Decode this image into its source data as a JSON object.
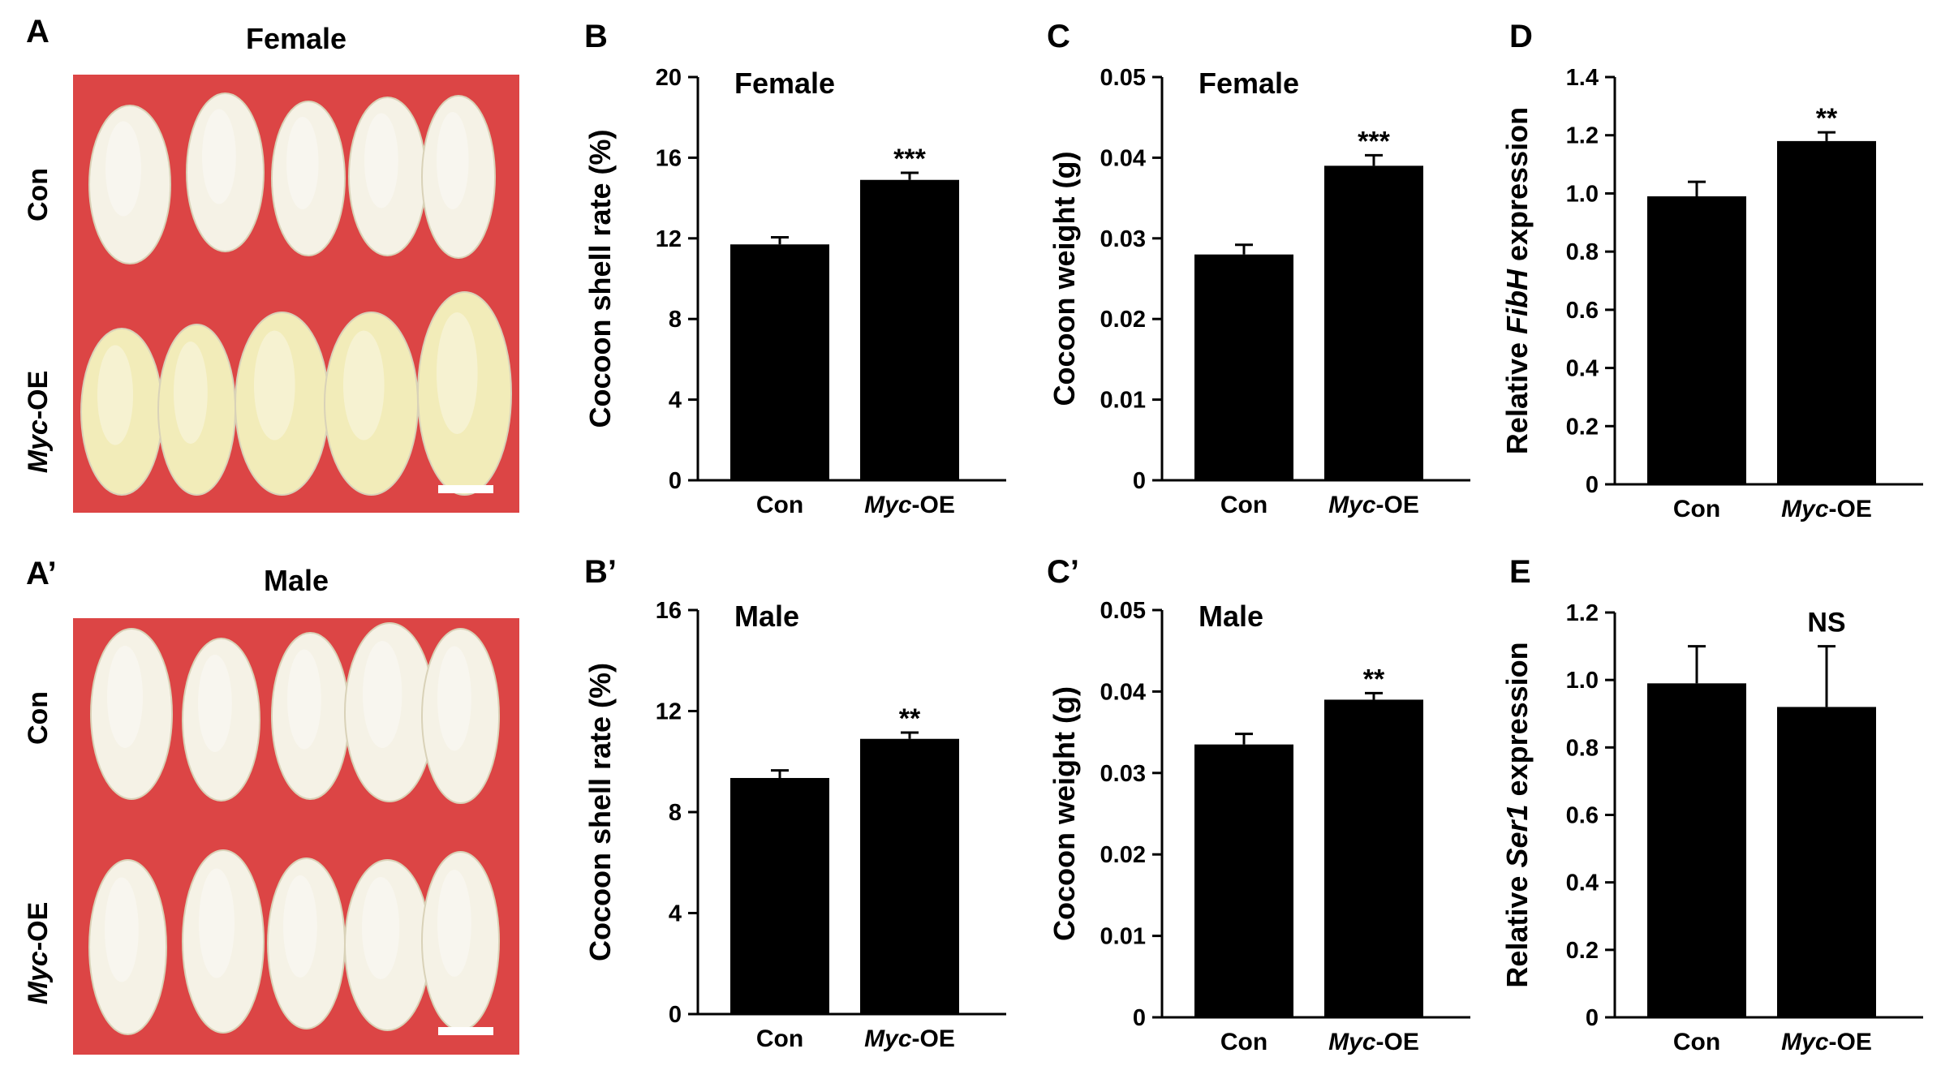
{
  "colors": {
    "bar": "#000000",
    "photo_bg": "#dc4545",
    "cocoon_white": "#f5f2e6",
    "cocoon_yellow": "#f2ecb9",
    "scale_bar": "#ffffff"
  },
  "photos": [
    {
      "panel": "A",
      "title": "Female",
      "rows": [
        {
          "label": "Con",
          "tone": "white",
          "count": 5
        },
        {
          "label_italic": "Myc",
          "label_rest": "-OE",
          "tone": "yellow",
          "count": 5
        }
      ]
    },
    {
      "panel": "A’",
      "title": "Male",
      "rows": [
        {
          "label": "Con",
          "tone": "white",
          "count": 5
        },
        {
          "label_italic": "Myc",
          "label_rest": "-OE",
          "tone": "white",
          "count": 5
        }
      ]
    }
  ],
  "chart_data": [
    {
      "panel": "B",
      "type": "bar",
      "title": "Female",
      "ylabel": "Cocoon shell rate (%)",
      "categories": [
        "Con",
        "Myc-OE"
      ],
      "values": [
        11.7,
        14.9
      ],
      "errors": [
        0.35,
        0.35
      ],
      "ylim": [
        0,
        20
      ],
      "yticks": [
        "0",
        "4",
        "8",
        "12",
        "16",
        "20"
      ],
      "significance": "***"
    },
    {
      "panel": "B’",
      "type": "bar",
      "title": "Male",
      "ylabel": "Cocoon shell rate (%)",
      "categories": [
        "Con",
        "Myc-OE"
      ],
      "values": [
        9.35,
        10.9
      ],
      "errors": [
        0.3,
        0.25
      ],
      "ylim": [
        0,
        16
      ],
      "yticks": [
        "0",
        "4",
        "8",
        "12",
        "16"
      ],
      "significance": "**"
    },
    {
      "panel": "C",
      "type": "bar",
      "title": "Female",
      "ylabel": "Cocoon weight (g)",
      "categories": [
        "Con",
        "Myc-OE"
      ],
      "values": [
        0.028,
        0.039
      ],
      "errors": [
        0.0012,
        0.0013
      ],
      "ylim": [
        0,
        0.05
      ],
      "yticks": [
        "0",
        "0.01",
        "0.02",
        "0.03",
        "0.04",
        "0.05"
      ],
      "significance": "***"
    },
    {
      "panel": "C’",
      "type": "bar",
      "title": "Male",
      "ylabel": "Cocoon weight (g)",
      "categories": [
        "Con",
        "Myc-OE"
      ],
      "values": [
        0.0335,
        0.039
      ],
      "errors": [
        0.0013,
        0.0008
      ],
      "ylim": [
        0,
        0.05
      ],
      "yticks": [
        "0",
        "0.01",
        "0.02",
        "0.03",
        "0.04",
        "0.05"
      ],
      "significance": "**"
    },
    {
      "panel": "D",
      "type": "bar",
      "title": "",
      "ylabel_pre": "Relative ",
      "ylabel_italic": "FibH",
      "ylabel_post": " expression",
      "categories": [
        "Con",
        "Myc-OE"
      ],
      "values": [
        0.99,
        1.18
      ],
      "errors": [
        0.05,
        0.03
      ],
      "ylim": [
        0,
        1.4
      ],
      "yticks": [
        "0",
        "0.2",
        "0.4",
        "0.6",
        "0.8",
        "1.0",
        "1.2",
        "1.4"
      ],
      "significance": "**"
    },
    {
      "panel": "E",
      "type": "bar",
      "title": "",
      "ylabel_pre": "Relative ",
      "ylabel_italic": "Ser1",
      "ylabel_post": " expression",
      "categories": [
        "Con",
        "Myc-OE"
      ],
      "values": [
        0.99,
        0.92
      ],
      "errors": [
        0.11,
        0.18
      ],
      "ylim": [
        0,
        1.2
      ],
      "yticks": [
        "0",
        "0.2",
        "0.4",
        "0.6",
        "0.8",
        "1.0",
        "1.2"
      ],
      "significance": "NS"
    }
  ]
}
